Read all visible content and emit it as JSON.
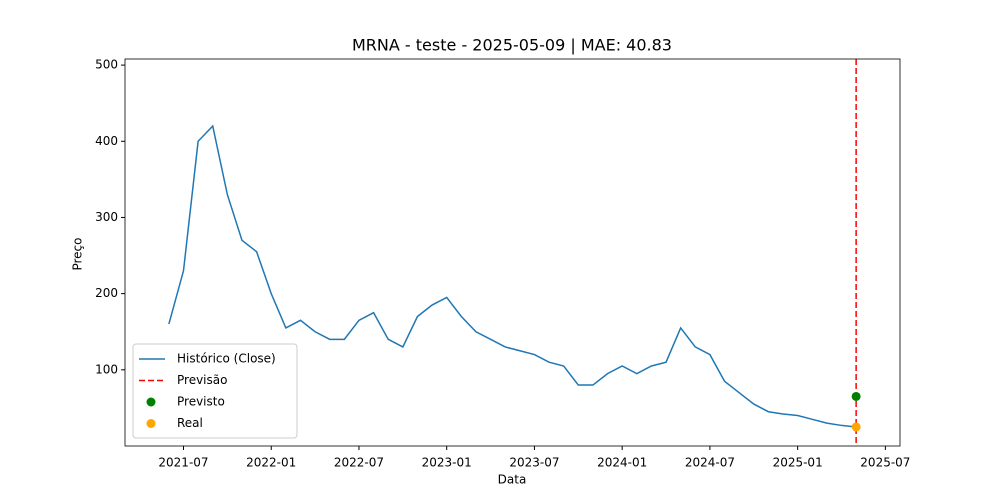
{
  "chart_data": {
    "type": "line",
    "title": "MRNA - teste - 2025-05-09 | MAE: 40.83",
    "xlabel": "Data",
    "ylabel": "Preço",
    "x": [
      "2021-06",
      "2021-07",
      "2021-08",
      "2021-09",
      "2021-10",
      "2021-11",
      "2021-12",
      "2022-01",
      "2022-02",
      "2022-03",
      "2022-04",
      "2022-05",
      "2022-06",
      "2022-07",
      "2022-08",
      "2022-09",
      "2022-10",
      "2022-11",
      "2022-12",
      "2023-01",
      "2023-02",
      "2023-03",
      "2023-04",
      "2023-05",
      "2023-06",
      "2023-07",
      "2023-08",
      "2023-09",
      "2023-10",
      "2023-11",
      "2023-12",
      "2024-01",
      "2024-02",
      "2024-03",
      "2024-04",
      "2024-05",
      "2024-06",
      "2024-07",
      "2024-08",
      "2024-09",
      "2024-10",
      "2024-11",
      "2024-12",
      "2025-01",
      "2025-02",
      "2025-03",
      "2025-04",
      "2025-05"
    ],
    "series": [
      {
        "name": "Histórico (Close)",
        "color": "#1f77b4",
        "values": [
          160,
          230,
          400,
          420,
          330,
          270,
          255,
          200,
          155,
          165,
          150,
          140,
          140,
          165,
          175,
          140,
          130,
          170,
          185,
          195,
          170,
          150,
          140,
          130,
          125,
          120,
          110,
          105,
          80,
          80,
          95,
          105,
          95,
          105,
          110,
          155,
          130,
          120,
          85,
          70,
          55,
          45,
          42,
          40,
          35,
          30,
          27,
          25
        ]
      }
    ],
    "forecast_line": {
      "name": "Previsão",
      "color": "#ff0000",
      "x": "2025-05"
    },
    "points": [
      {
        "name": "Previsto",
        "color": "#008000",
        "x": "2025-05",
        "value": 65
      },
      {
        "name": "Real",
        "color": "#ffa500",
        "x": "2025-05",
        "value": 25
      }
    ],
    "xlim": [
      "2021-03",
      "2025-08"
    ],
    "xticks": [
      "2021-07",
      "2022-01",
      "2022-07",
      "2023-01",
      "2023-07",
      "2024-01",
      "2024-07",
      "2025-01",
      "2025-07"
    ],
    "ylim": [
      0,
      508
    ],
    "yticks": [
      100,
      200,
      300,
      400,
      500
    ],
    "legend": "lower left"
  }
}
